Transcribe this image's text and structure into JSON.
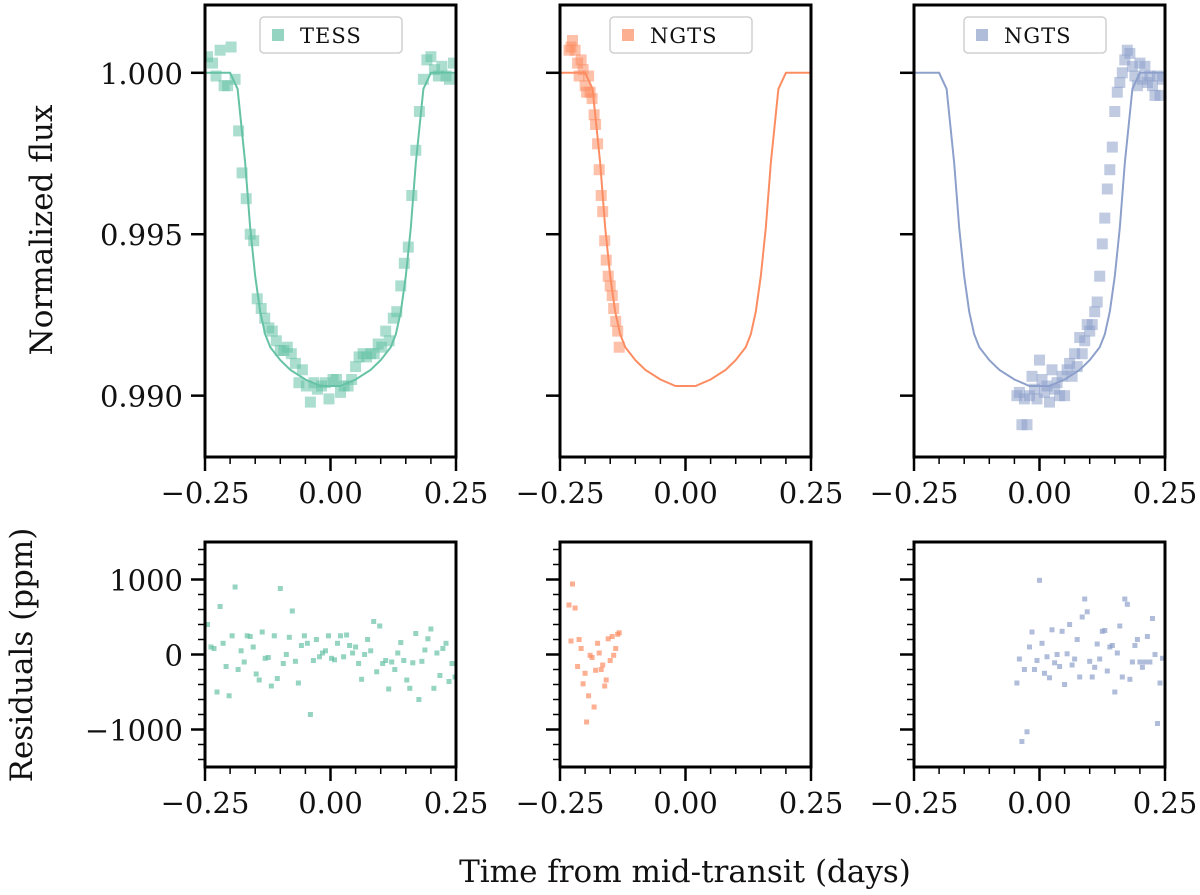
{
  "figure": {
    "xlabel": "Time from mid-transit (days)",
    "ylabel_top": "Normalized flux",
    "ylabel_bottom": "Residuals (ppm)"
  },
  "chart_data": [
    {
      "type": "scatter",
      "panel": "flux",
      "legend": "TESS",
      "color": "#66c2a5",
      "xlim": [
        -0.25,
        0.25
      ],
      "ylim": [
        0.9881,
        1.0021
      ],
      "xticks": [
        -0.25,
        0.0,
        0.25
      ],
      "xtick_labels": [
        "−0.25",
        "0.00",
        "0.25"
      ],
      "yticks": [
        0.99,
        0.995,
        1.0
      ],
      "ytick_labels": [
        "0.990",
        "0.995",
        "1.000"
      ],
      "series": [
        {
          "name": "TESS",
          "kind": "points",
          "x": [
            -0.245,
            -0.235,
            -0.228,
            -0.22,
            -0.212,
            -0.205,
            -0.198,
            -0.19,
            -0.183,
            -0.176,
            -0.168,
            -0.16,
            -0.153,
            -0.146,
            -0.138,
            -0.131,
            -0.123,
            -0.116,
            -0.108,
            -0.1,
            -0.093,
            -0.086,
            -0.078,
            -0.07,
            -0.063,
            -0.056,
            -0.048,
            -0.04,
            -0.033,
            -0.026,
            -0.018,
            -0.01,
            -0.003,
            0.005,
            0.012,
            0.02,
            0.027,
            0.035,
            0.042,
            0.05,
            0.057,
            0.065,
            0.072,
            0.08,
            0.087,
            0.095,
            0.102,
            0.11,
            0.117,
            0.125,
            0.132,
            0.14,
            0.147,
            0.155,
            0.162,
            0.17,
            0.177,
            0.185,
            0.192,
            0.2,
            0.207,
            0.215,
            0.222,
            0.23,
            0.237,
            0.245
          ],
          "y": [
            1.0005,
            1.0003,
            0.9999,
            1.0007,
            0.9996,
            0.9996,
            1.0008,
            0.9998,
            0.9982,
            0.9969,
            0.9961,
            0.995,
            0.9948,
            0.993,
            0.9927,
            0.9924,
            0.9921,
            0.992,
            0.9917,
            0.9914,
            0.9914,
            0.9915,
            0.9913,
            0.991,
            0.9904,
            0.9908,
            0.9903,
            0.9898,
            0.9904,
            0.9902,
            0.9903,
            0.9904,
            0.9899,
            0.9905,
            0.9905,
            0.9901,
            0.9903,
            0.9903,
            0.9905,
            0.9909,
            0.9912,
            0.9913,
            0.9912,
            0.9913,
            0.9913,
            0.9916,
            0.9915,
            0.992,
            0.9917,
            0.9924,
            0.9926,
            0.9934,
            0.9941,
            0.9946,
            0.9962,
            0.9976,
            0.9988,
            0.9998,
            1.0004,
            1.0005,
            1.0001,
            0.9999,
            1.0002,
            0.9999,
            0.9998,
            1.0003
          ]
        },
        {
          "name": "Transit model",
          "kind": "curve",
          "x": [
            -0.25,
            -0.2,
            -0.185,
            -0.17,
            -0.16,
            -0.15,
            -0.14,
            -0.13,
            -0.12,
            -0.1,
            -0.08,
            -0.05,
            -0.02,
            0.0,
            0.02,
            0.05,
            0.08,
            0.1,
            0.12,
            0.13,
            0.14,
            0.15,
            0.16,
            0.17,
            0.185,
            0.2,
            0.25
          ],
          "y": [
            1.0,
            1.0,
            0.9995,
            0.9972,
            0.9952,
            0.9937,
            0.9926,
            0.9919,
            0.9915,
            0.9911,
            0.9908,
            0.9905,
            0.9903,
            0.9903,
            0.9903,
            0.9905,
            0.9908,
            0.9911,
            0.9915,
            0.9919,
            0.9926,
            0.9937,
            0.9952,
            0.9972,
            0.9995,
            1.0,
            1.0
          ]
        }
      ]
    },
    {
      "type": "scatter",
      "panel": "flux",
      "legend": "NGTS",
      "color": "#fc8d62",
      "xlim": [
        -0.25,
        0.25
      ],
      "ylim": [
        0.9881,
        1.0021
      ],
      "xticks": [
        -0.25,
        0.0,
        0.25
      ],
      "xtick_labels": [
        "−0.25",
        "0.00",
        "0.25"
      ],
      "yticks": [
        0.99,
        0.995,
        1.0
      ],
      "series": [
        {
          "name": "NGTS",
          "kind": "points",
          "x": [
            -0.232,
            -0.228,
            -0.225,
            -0.22,
            -0.215,
            -0.212,
            -0.208,
            -0.204,
            -0.2,
            -0.197,
            -0.193,
            -0.19,
            -0.186,
            -0.182,
            -0.179,
            -0.175,
            -0.172,
            -0.168,
            -0.165,
            -0.161,
            -0.158,
            -0.154,
            -0.15,
            -0.146,
            -0.143,
            -0.139,
            -0.135,
            -0.132
          ],
          "y": [
            1.0007,
            1.0008,
            1.001,
            1.0007,
            1.0003,
            0.9999,
            1.0004,
            1.0001,
            0.9996,
            0.9994,
            0.9999,
            0.9994,
            0.9992,
            0.9987,
            0.9984,
            0.9978,
            0.997,
            0.9962,
            0.9957,
            0.9948,
            0.9942,
            0.9937,
            0.9934,
            0.9931,
            0.9927,
            0.9923,
            0.992,
            0.9915
          ]
        },
        {
          "name": "Transit model",
          "kind": "curve",
          "x": [
            -0.25,
            -0.2,
            -0.185,
            -0.17,
            -0.16,
            -0.15,
            -0.14,
            -0.13,
            -0.12,
            -0.1,
            -0.08,
            -0.05,
            -0.02,
            0.0,
            0.02,
            0.05,
            0.08,
            0.1,
            0.12,
            0.13,
            0.14,
            0.15,
            0.16,
            0.17,
            0.185,
            0.2,
            0.25
          ],
          "y": [
            1.0,
            1.0,
            0.9995,
            0.9972,
            0.9952,
            0.9937,
            0.9926,
            0.9919,
            0.9915,
            0.9911,
            0.9908,
            0.9905,
            0.9903,
            0.9903,
            0.9903,
            0.9905,
            0.9908,
            0.9911,
            0.9915,
            0.9919,
            0.9926,
            0.9937,
            0.9952,
            0.9972,
            0.9995,
            1.0,
            1.0
          ]
        }
      ]
    },
    {
      "type": "scatter",
      "panel": "flux",
      "legend": "NGTS",
      "color": "#8da0cb",
      "xlim": [
        -0.25,
        0.25
      ],
      "ylim": [
        0.9881,
        1.0021
      ],
      "xticks": [
        -0.25,
        0.0,
        0.25
      ],
      "xtick_labels": [
        "−0.25",
        "0.00",
        "0.25"
      ],
      "yticks": [
        0.99,
        0.995,
        1.0
      ],
      "series": [
        {
          "name": "NGTS",
          "kind": "points",
          "x": [
            -0.045,
            -0.04,
            -0.035,
            -0.03,
            -0.025,
            -0.02,
            -0.015,
            -0.01,
            -0.005,
            0.0,
            0.005,
            0.01,
            0.015,
            0.02,
            0.025,
            0.03,
            0.035,
            0.04,
            0.045,
            0.05,
            0.055,
            0.06,
            0.065,
            0.07,
            0.075,
            0.08,
            0.085,
            0.09,
            0.095,
            0.1,
            0.105,
            0.11,
            0.115,
            0.12,
            0.125,
            0.13,
            0.135,
            0.14,
            0.145,
            0.15,
            0.155,
            0.16,
            0.165,
            0.17,
            0.175,
            0.18,
            0.185,
            0.19,
            0.195,
            0.2,
            0.205,
            0.21,
            0.215,
            0.22,
            0.225,
            0.23,
            0.235,
            0.24,
            0.245
          ],
          "y": [
            0.99,
            0.9901,
            0.9891,
            0.9899,
            0.9891,
            0.99,
            0.9906,
            0.9902,
            0.9899,
            0.9911,
            0.9905,
            0.9901,
            0.9903,
            0.9898,
            0.9908,
            0.9902,
            0.9904,
            0.99,
            0.9906,
            0.99,
            0.9908,
            0.991,
            0.9906,
            0.9913,
            0.9909,
            0.9918,
            0.9913,
            0.9917,
            0.9922,
            0.992,
            0.9922,
            0.9926,
            0.9929,
            0.9937,
            0.9947,
            0.9955,
            0.9964,
            0.997,
            0.9977,
            0.9988,
            0.9994,
            0.9997,
            1.0,
            1.0004,
            1.0007,
            1.0006,
            1.0002,
            0.9999,
            0.9996,
            1.0003,
            0.9998,
            1.0002,
            0.9997,
            0.9999,
            0.9996,
            0.9993,
            0.9999,
            0.9993,
            0.9998
          ]
        },
        {
          "name": "Transit model",
          "kind": "curve",
          "x": [
            -0.25,
            -0.2,
            -0.185,
            -0.17,
            -0.16,
            -0.15,
            -0.14,
            -0.13,
            -0.12,
            -0.1,
            -0.08,
            -0.05,
            -0.02,
            0.0,
            0.02,
            0.05,
            0.08,
            0.1,
            0.12,
            0.13,
            0.14,
            0.15,
            0.16,
            0.17,
            0.185,
            0.2,
            0.25
          ],
          "y": [
            1.0,
            1.0,
            0.9995,
            0.9972,
            0.9952,
            0.9937,
            0.9926,
            0.9919,
            0.9915,
            0.9911,
            0.9908,
            0.9905,
            0.9903,
            0.9903,
            0.9903,
            0.9905,
            0.9908,
            0.9911,
            0.9915,
            0.9919,
            0.9926,
            0.9937,
            0.9952,
            0.9972,
            0.9995,
            1.0,
            1.0
          ]
        }
      ]
    },
    {
      "type": "scatter",
      "panel": "residuals",
      "color": "#66c2a5",
      "xlim": [
        -0.25,
        0.25
      ],
      "ylim": [
        -1500,
        1500
      ],
      "xticks": [
        -0.25,
        0.0,
        0.25
      ],
      "xtick_labels": [
        "−0.25",
        "0.00",
        "0.25"
      ],
      "yticks": [
        -1000,
        0,
        1000
      ],
      "ytick_labels": [
        "−1000",
        "0",
        "1000"
      ],
      "series": [
        {
          "name": "TESS residuals",
          "kind": "points",
          "x": [
            -0.245,
            -0.238,
            -0.232,
            -0.226,
            -0.22,
            -0.214,
            -0.208,
            -0.202,
            -0.196,
            -0.19,
            -0.184,
            -0.178,
            -0.172,
            -0.166,
            -0.16,
            -0.154,
            -0.148,
            -0.142,
            -0.136,
            -0.13,
            -0.124,
            -0.118,
            -0.112,
            -0.106,
            -0.1,
            -0.094,
            -0.088,
            -0.082,
            -0.076,
            -0.07,
            -0.064,
            -0.058,
            -0.052,
            -0.046,
            -0.04,
            -0.034,
            -0.028,
            -0.022,
            -0.016,
            -0.01,
            -0.004,
            0.002,
            0.008,
            0.014,
            0.02,
            0.026,
            0.032,
            0.038,
            0.044,
            0.05,
            0.056,
            0.062,
            0.068,
            0.074,
            0.08,
            0.086,
            0.092,
            0.098,
            0.104,
            0.11,
            0.116,
            0.122,
            0.128,
            0.134,
            0.14,
            0.146,
            0.152,
            0.158,
            0.164,
            0.17,
            0.176,
            0.182,
            0.188,
            0.194,
            0.2,
            0.206,
            0.212,
            0.218,
            0.224,
            0.23,
            0.236,
            0.242,
            0.248
          ],
          "y": [
            400,
            100,
            80,
            -500,
            640,
            150,
            -160,
            -550,
            250,
            900,
            -200,
            50,
            -100,
            250,
            240,
            100,
            -260,
            -340,
            300,
            -50,
            -40,
            -420,
            250,
            -320,
            880,
            -120,
            0,
            230,
            580,
            -90,
            -380,
            120,
            250,
            150,
            -800,
            -80,
            200,
            -30,
            20,
            50,
            250,
            -50,
            -70,
            150,
            250,
            -30,
            260,
            120,
            20,
            100,
            -120,
            -330,
            0,
            200,
            50,
            440,
            -230,
            380,
            -120,
            -80,
            -460,
            -100,
            -200,
            20,
            160,
            -80,
            -340,
            -450,
            -110,
            280,
            -600,
            -90,
            60,
            210,
            340,
            -450,
            20,
            -280,
            80,
            150,
            -360,
            -120,
            -300
          ]
        }
      ]
    },
    {
      "type": "scatter",
      "panel": "residuals",
      "color": "#fc8d62",
      "xlim": [
        -0.25,
        0.25
      ],
      "ylim": [
        -1500,
        1500
      ],
      "xticks": [
        -0.25,
        0.0,
        0.25
      ],
      "xtick_labels": [
        "−0.25",
        "0.00",
        "0.25"
      ],
      "yticks": [
        -1000,
        0,
        1000
      ],
      "series": [
        {
          "name": "NGTS residuals",
          "kind": "points",
          "x": [
            -0.232,
            -0.228,
            -0.225,
            -0.22,
            -0.215,
            -0.212,
            -0.208,
            -0.204,
            -0.2,
            -0.197,
            -0.193,
            -0.19,
            -0.186,
            -0.182,
            -0.179,
            -0.175,
            -0.172,
            -0.168,
            -0.165,
            -0.161,
            -0.158,
            -0.154,
            -0.15,
            -0.146,
            -0.143,
            -0.139,
            -0.135,
            -0.132
          ],
          "y": [
            660,
            180,
            940,
            620,
            -160,
            200,
            80,
            -390,
            -250,
            -900,
            -550,
            -10,
            -40,
            -700,
            -210,
            150,
            20,
            -200,
            -140,
            -420,
            -340,
            210,
            -80,
            240,
            -10,
            80,
            270,
            290
          ]
        }
      ]
    },
    {
      "type": "scatter",
      "panel": "residuals",
      "color": "#8da0cb",
      "xlim": [
        -0.25,
        0.25
      ],
      "ylim": [
        -1500,
        1500
      ],
      "xticks": [
        -0.25,
        0.0,
        0.25
      ],
      "xtick_labels": [
        "−0.25",
        "0.00",
        "0.25"
      ],
      "yticks": [
        -1000,
        0,
        1000
      ],
      "series": [
        {
          "name": "NGTS residuals",
          "kind": "points",
          "x": [
            -0.045,
            -0.04,
            -0.035,
            -0.03,
            -0.025,
            -0.02,
            -0.015,
            -0.01,
            -0.005,
            0.0,
            0.005,
            0.01,
            0.015,
            0.02,
            0.025,
            0.03,
            0.035,
            0.04,
            0.045,
            0.05,
            0.055,
            0.06,
            0.065,
            0.07,
            0.075,
            0.08,
            0.085,
            0.09,
            0.095,
            0.1,
            0.105,
            0.11,
            0.115,
            0.12,
            0.125,
            0.13,
            0.135,
            0.14,
            0.145,
            0.15,
            0.155,
            0.16,
            0.165,
            0.17,
            0.175,
            0.18,
            0.185,
            0.19,
            0.195,
            0.2,
            0.205,
            0.21,
            0.215,
            0.22,
            0.225,
            0.23,
            0.235,
            0.24,
            0.245
          ],
          "y": [
            -380,
            -60,
            -1160,
            -200,
            -1030,
            100,
            300,
            -200,
            -80,
            990,
            150,
            -250,
            -30,
            -310,
            330,
            -110,
            0,
            -160,
            310,
            -400,
            10,
            400,
            -140,
            -60,
            200,
            -300,
            500,
            740,
            570,
            -90,
            -300,
            -170,
            140,
            -60,
            310,
            320,
            -220,
            100,
            120,
            -500,
            20,
            380,
            -300,
            740,
            670,
            -330,
            -100,
            120,
            200,
            -100,
            -170,
            -100,
            240,
            -100,
            480,
            0,
            -920,
            -380,
            -50
          ]
        }
      ]
    }
  ]
}
